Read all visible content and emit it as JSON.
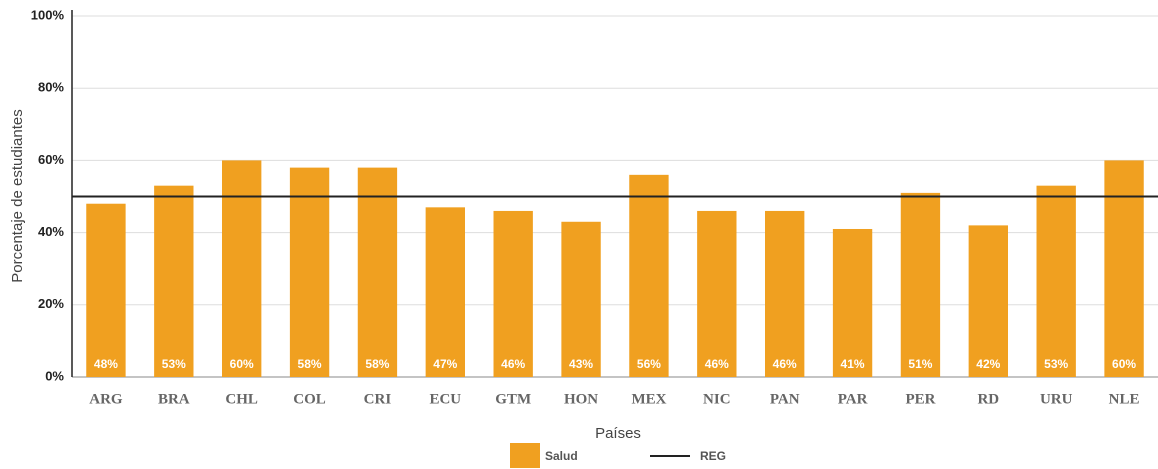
{
  "chart_data": {
    "type": "bar",
    "categories": [
      "ARG",
      "BRA",
      "CHL",
      "COL",
      "CRI",
      "ECU",
      "GTM",
      "HON",
      "MEX",
      "NIC",
      "PAN",
      "PAR",
      "PER",
      "RD",
      "URU",
      "NLE"
    ],
    "series": [
      {
        "name": "Salud",
        "color": "#f0a020",
        "values": [
          48,
          53,
          60,
          58,
          58,
          47,
          46,
          43,
          56,
          46,
          46,
          41,
          51,
          42,
          53,
          60
        ],
        "value_labels": [
          "48%",
          "53%",
          "60%",
          "58%",
          "58%",
          "47%",
          "46%",
          "43%",
          "56%",
          "46%",
          "46%",
          "41%",
          "51%",
          "42%",
          "53%",
          "60%"
        ]
      }
    ],
    "reference": {
      "name": "REG",
      "value": 50,
      "color": "#222222"
    },
    "xlabel": "Países",
    "ylabel": "Porcentaje de estudiantes",
    "ylim": [
      0,
      100
    ],
    "yticks": [
      {
        "value": 0,
        "label": "0%"
      },
      {
        "value": 20,
        "label": "20%"
      },
      {
        "value": 40,
        "label": "40%"
      },
      {
        "value": 60,
        "label": "60%"
      },
      {
        "value": 80,
        "label": "80%"
      },
      {
        "value": 100,
        "label": "100%"
      }
    ],
    "grid": true
  }
}
